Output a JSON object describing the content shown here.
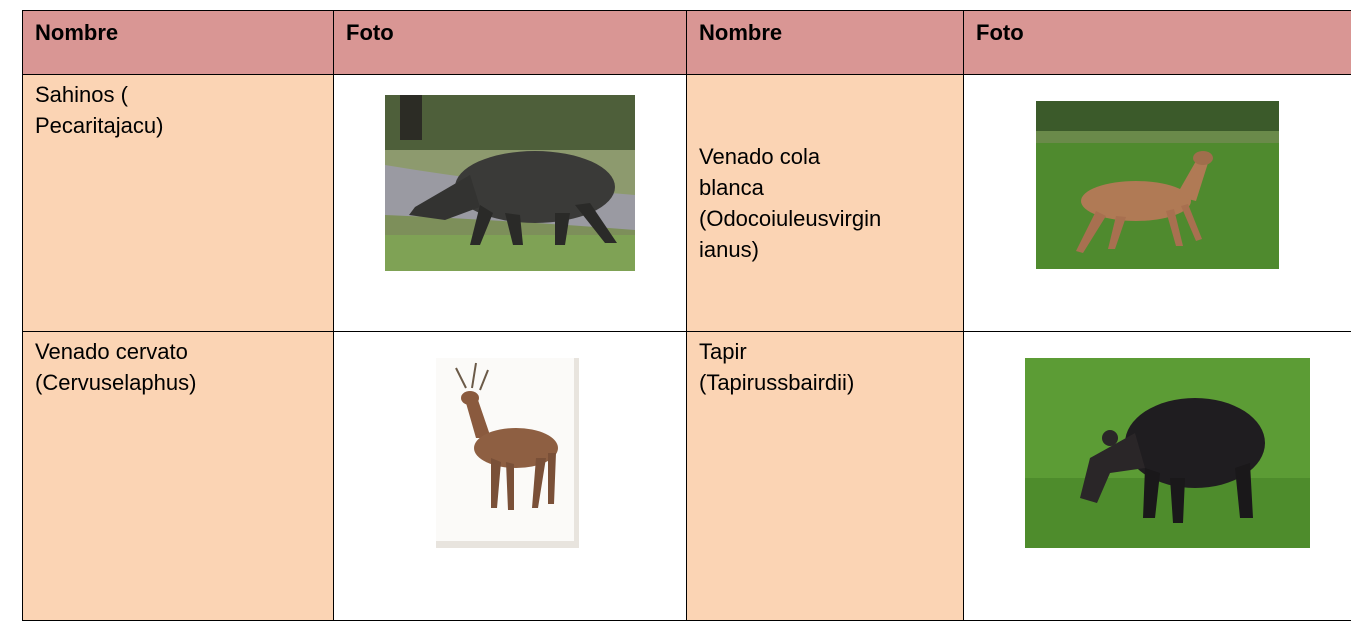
{
  "table": {
    "header": [
      "Nombre",
      "Foto",
      "Nombre",
      "Foto"
    ],
    "rows": [
      {
        "left_name": [
          "Sahinos (",
          "Pecaritajacu)"
        ],
        "right_name": [
          "Venado cola",
          "blanca",
          "(Odocoiuleusvirgin",
          "ianus)"
        ]
      },
      {
        "left_name": [
          "Venado cervato",
          "(Cervuselaphus)"
        ],
        "right_name": [
          "Tapir",
          "(Tapirussbairdii)"
        ]
      }
    ]
  }
}
